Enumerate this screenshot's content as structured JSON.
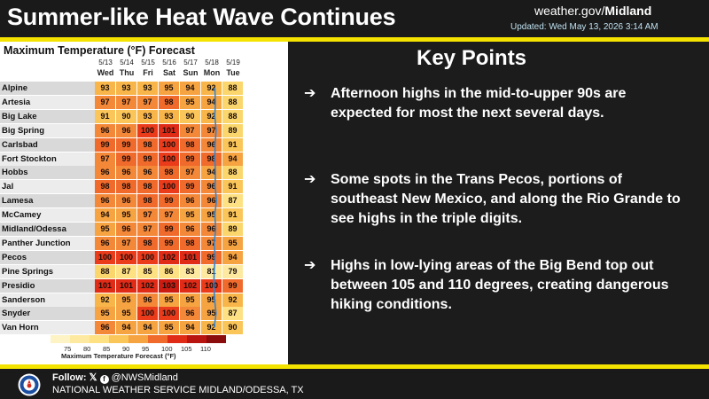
{
  "header": {
    "title": "Summer-like Heat Wave Continues",
    "site_prefix": "weather.gov/",
    "site_office": "Midland",
    "updated": "Updated: Wed May 13, 2026 3:14 AM"
  },
  "table": {
    "title": "Maximum Temperature (°F) Forecast",
    "dates": [
      "5/13",
      "5/14",
      "5/15",
      "5/16",
      "5/17",
      "5/18",
      "5/19"
    ],
    "days": [
      "Wed",
      "Thu",
      "Fri",
      "Sat",
      "Sun",
      "Mon",
      "Tue"
    ],
    "rows": [
      {
        "city": "Alpine",
        "temps": [
          93,
          93,
          93,
          95,
          94,
          92,
          88
        ]
      },
      {
        "city": "Artesia",
        "temps": [
          97,
          97,
          97,
          98,
          95,
          94,
          88
        ]
      },
      {
        "city": "Big Lake",
        "temps": [
          91,
          90,
          93,
          93,
          90,
          92,
          88
        ]
      },
      {
        "city": "Big Spring",
        "temps": [
          96,
          96,
          100,
          101,
          97,
          97,
          89
        ]
      },
      {
        "city": "Carlsbad",
        "temps": [
          99,
          99,
          98,
          100,
          98,
          96,
          91
        ]
      },
      {
        "city": "Fort Stockton",
        "temps": [
          97,
          99,
          99,
          100,
          99,
          98,
          94
        ]
      },
      {
        "city": "Hobbs",
        "temps": [
          96,
          96,
          96,
          98,
          97,
          94,
          88
        ]
      },
      {
        "city": "Jal",
        "temps": [
          98,
          98,
          98,
          100,
          99,
          96,
          91
        ]
      },
      {
        "city": "Lamesa",
        "temps": [
          96,
          96,
          98,
          99,
          96,
          96,
          87
        ]
      },
      {
        "city": "McCamey",
        "temps": [
          94,
          95,
          97,
          97,
          95,
          95,
          91
        ]
      },
      {
        "city": "Midland/Odessa",
        "temps": [
          95,
          96,
          97,
          99,
          96,
          96,
          89
        ]
      },
      {
        "city": "Panther Junction",
        "temps": [
          96,
          97,
          98,
          99,
          98,
          97,
          95
        ]
      },
      {
        "city": "Pecos",
        "temps": [
          100,
          100,
          100,
          102,
          101,
          99,
          94
        ]
      },
      {
        "city": "Pine Springs",
        "temps": [
          88,
          87,
          85,
          86,
          83,
          81,
          79
        ]
      },
      {
        "city": "Presidio",
        "temps": [
          101,
          101,
          102,
          103,
          102,
          100,
          99
        ]
      },
      {
        "city": "Sanderson",
        "temps": [
          92,
          95,
          96,
          95,
          95,
          95,
          92
        ]
      },
      {
        "city": "Snyder",
        "temps": [
          95,
          95,
          100,
          100,
          96,
          95,
          87
        ]
      },
      {
        "city": "Van Horn",
        "temps": [
          96,
          94,
          94,
          95,
          94,
          92,
          90
        ]
      }
    ],
    "legend": {
      "ticks": [
        "75",
        "80",
        "85",
        "90",
        "95",
        "100",
        "105",
        "110"
      ],
      "caption": "Maximum Temperature Forecast (°F)"
    }
  },
  "key_points": {
    "title": "Key Points",
    "bullets": [
      "Afternoon highs in the mid-to-upper 90s are expected for most the next several days.",
      "Some spots in the Trans Pecos, portions of southeast New Mexico, and along the Rio Grande to see highs in the triple digits.",
      "Highs in low-lying areas of the Big Bend top out between 105 and 110 degrees, creating dangerous hiking conditions."
    ]
  },
  "footer": {
    "follow_label": "Follow:",
    "handle": "@NWSMidland",
    "office": "NATIONAL WEATHER SERVICE MIDLAND/ODESSA, TX"
  },
  "colors": {
    "accent_bar": "#f4e300",
    "background": "#1c1c1c",
    "trend_line": "#2f86d6"
  }
}
